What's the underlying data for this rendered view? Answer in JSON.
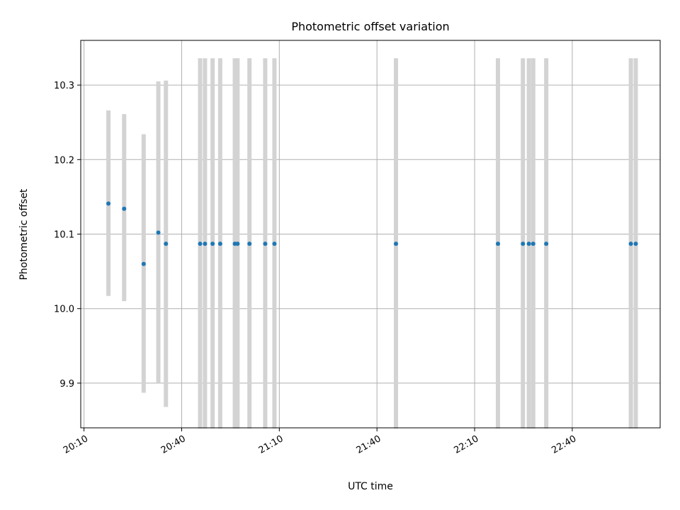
{
  "chart_data": {
    "type": "scatter",
    "title": "Photometric offset variation",
    "xlabel": "UTC time",
    "ylabel": "Photometric offset",
    "x_is_time": true,
    "xlim": [
      "20:09",
      "23:07"
    ],
    "ylim": [
      9.84,
      10.36
    ],
    "xticks": [
      "20:10",
      "20:40",
      "21:10",
      "21:40",
      "22:10",
      "22:40"
    ],
    "yticks": [
      9.9,
      10.0,
      10.1,
      10.2,
      10.3
    ],
    "ytick_labels": [
      "9.9",
      "10.0",
      "10.1",
      "10.2",
      "10.3"
    ],
    "grid": true,
    "point_color": "#1f77b4",
    "errorbar_color": "#d3d3d3",
    "series": [
      {
        "points": [
          {
            "x": "20:17:30",
            "y": 10.141,
            "ylow": 10.017,
            "yhigh": 10.266
          },
          {
            "x": "20:22:20",
            "y": 10.134,
            "ylow": 10.01,
            "yhigh": 10.261
          },
          {
            "x": "20:28:20",
            "y": 10.06,
            "ylow": 9.887,
            "yhigh": 10.234
          },
          {
            "x": "20:32:50",
            "y": 10.102,
            "ylow": 9.9,
            "yhigh": 10.305
          },
          {
            "x": "20:35:10",
            "y": 10.087,
            "ylow": 9.868,
            "yhigh": 10.306
          },
          {
            "x": "20:45:40",
            "y": 10.087,
            "ylow": 9.839,
            "yhigh": 10.336
          },
          {
            "x": "20:47:10",
            "y": 10.087,
            "ylow": 9.839,
            "yhigh": 10.336
          },
          {
            "x": "20:49:30",
            "y": 10.087,
            "ylow": 9.839,
            "yhigh": 10.336
          },
          {
            "x": "20:51:50",
            "y": 10.087,
            "ylow": 9.839,
            "yhigh": 10.336
          },
          {
            "x": "20:56:20",
            "y": 10.087,
            "ylow": 9.839,
            "yhigh": 10.336
          },
          {
            "x": "20:57:10",
            "y": 10.087,
            "ylow": 9.839,
            "yhigh": 10.336
          },
          {
            "x": "21:00:50",
            "y": 10.087,
            "ylow": 9.839,
            "yhigh": 10.336
          },
          {
            "x": "21:05:40",
            "y": 10.087,
            "ylow": 9.839,
            "yhigh": 10.336
          },
          {
            "x": "21:08:30",
            "y": 10.087,
            "ylow": 9.839,
            "yhigh": 10.336
          },
          {
            "x": "21:45:50",
            "y": 10.087,
            "ylow": 9.839,
            "yhigh": 10.336
          },
          {
            "x": "22:17:10",
            "y": 10.087,
            "ylow": 9.839,
            "yhigh": 10.336
          },
          {
            "x": "22:24:50",
            "y": 10.087,
            "ylow": 9.839,
            "yhigh": 10.336
          },
          {
            "x": "22:26:40",
            "y": 10.087,
            "ylow": 9.839,
            "yhigh": 10.336
          },
          {
            "x": "22:28:00",
            "y": 10.087,
            "ylow": 9.839,
            "yhigh": 10.336
          },
          {
            "x": "22:32:00",
            "y": 10.087,
            "ylow": 9.839,
            "yhigh": 10.336
          },
          {
            "x": "22:58:00",
            "y": 10.087,
            "ylow": 9.839,
            "yhigh": 10.336
          },
          {
            "x": "22:59:30",
            "y": 10.087,
            "ylow": 9.839,
            "yhigh": 10.336
          }
        ]
      }
    ]
  }
}
